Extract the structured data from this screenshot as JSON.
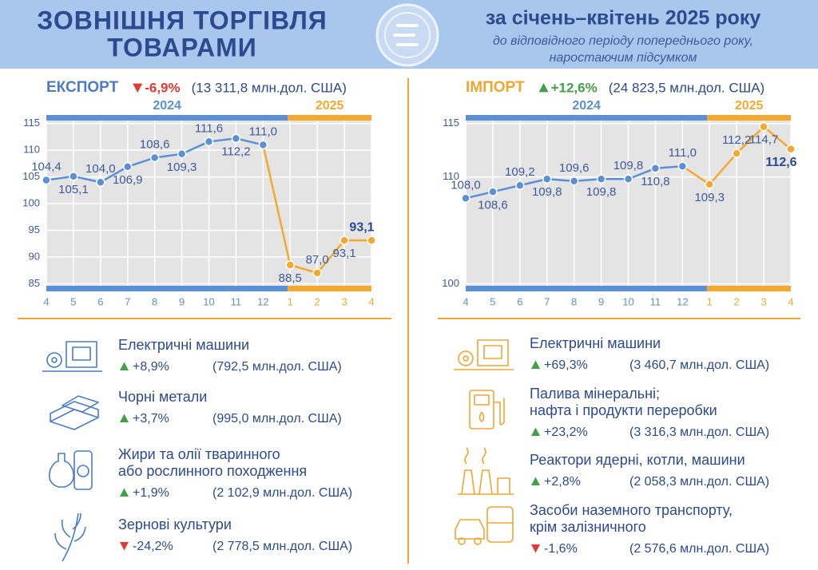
{
  "header": {
    "title": [
      "ЗОВНІШНЯ ТОРГІВЛЯ",
      "ТОВАРАМИ"
    ],
    "period": "за січень–квітень 2025 року",
    "note": [
      "до відповідного періоду попереднього року,",
      "наростаючим підсумком"
    ]
  },
  "chart_data": [
    {
      "type": "line",
      "title": "ЕКСПОРТ",
      "color": "#4a7cc9",
      "change": "-6,9%",
      "total": "(13 311,8  млн.дол. США)",
      "categories": [
        "4",
        "5",
        "6",
        "7",
        "8",
        "9",
        "10",
        "11",
        "12",
        "1",
        "2",
        "3",
        "4"
      ],
      "series": [
        {
          "name": "2024",
          "color": "#5b8fd6",
          "values": [
            104.4,
            105.1,
            104.0,
            106.9,
            108.6,
            109.3,
            111.6,
            112.2,
            111.0,
            null,
            null,
            null,
            null
          ],
          "value_labels": [
            "104,4",
            "105,1",
            "104,0",
            "106,9",
            "108,6",
            "109,3",
            "111,6",
            "112,2",
            "111,0",
            null,
            null,
            null,
            null
          ]
        },
        {
          "name": "2025",
          "color": "#f5a82e",
          "values": [
            null,
            null,
            null,
            null,
            null,
            null,
            null,
            null,
            null,
            88.5,
            87.0,
            93.1,
            93.1
          ],
          "value_labels": [
            null,
            null,
            null,
            null,
            null,
            null,
            null,
            null,
            null,
            "88,5",
            "87,0",
            "93,1",
            "93,1"
          ]
        }
      ],
      "ylim": [
        84,
        116
      ],
      "yticks": [
        85,
        90,
        95,
        100,
        105,
        110,
        115
      ],
      "grid": true
    },
    {
      "type": "line",
      "title": "ІМПОРТ",
      "color": "#f2a531",
      "change": "+12,6%",
      "total": "(24 823,5 млн.дол. США)",
      "categories": [
        "4",
        "5",
        "6",
        "7",
        "8",
        "9",
        "10",
        "11",
        "12",
        "1",
        "2",
        "3",
        "4"
      ],
      "series": [
        {
          "name": "2024",
          "color": "#5b8fd6",
          "values": [
            108.0,
            108.6,
            109.2,
            109.8,
            109.6,
            109.8,
            109.8,
            110.8,
            111.0,
            null,
            null,
            null,
            null
          ],
          "value_labels": [
            "108,0",
            "108,6",
            "109,2",
            "109,8",
            "109,6",
            "109,8",
            "109,8",
            "110,8",
            "111,0",
            null,
            null,
            null,
            null
          ]
        },
        {
          "name": "2025",
          "color": "#f5a82e",
          "values": [
            null,
            null,
            null,
            null,
            null,
            null,
            null,
            null,
            null,
            109.3,
            112.2,
            114.7,
            112.6
          ],
          "value_labels": [
            null,
            null,
            null,
            null,
            null,
            null,
            null,
            null,
            null,
            "109,3",
            "112,2",
            "114,7",
            "112,6"
          ]
        }
      ],
      "ylim": [
        99.5,
        115.5
      ],
      "yticks": [
        100,
        110,
        115
      ],
      "grid": true
    }
  ],
  "export_goods": [
    {
      "name": [
        "Електричні машини"
      ],
      "change": "+8,9%",
      "value": "(792,5 млн.дол. США)"
    },
    {
      "name": [
        "Чорні метали"
      ],
      "change": "+3,7%",
      "value": "(995,0 млн.дол. США)"
    },
    {
      "name": [
        "Жири та олії тваринного",
        "або рослинного походження"
      ],
      "change": "+1,9%",
      "value": "(2 102,9 млн.дол. США)"
    },
    {
      "name": [
        "Зернові культури"
      ],
      "change": "-24,2%",
      "value": "(2 778,5 млн.дол. США)"
    }
  ],
  "import_goods": [
    {
      "name": [
        "Електричні машини"
      ],
      "change": "+69,3%",
      "value": "(3 460,7 млн.дол. США)"
    },
    {
      "name": [
        "Палива мінеральні;",
        "нафта і продукти переробки"
      ],
      "change": "+23,2%",
      "value": "(3 316,3 млн.дол. США)"
    },
    {
      "name": [
        "Реактори ядерні, котли, машини"
      ],
      "change": "+2,8%",
      "value": "(2 058,3 млн.дол. США)"
    },
    {
      "name": [
        "Засоби наземного транспорту,",
        "крім залізничного"
      ],
      "change": "-1,6%",
      "value": "(2 576,6 млн.дол. США)"
    }
  ]
}
